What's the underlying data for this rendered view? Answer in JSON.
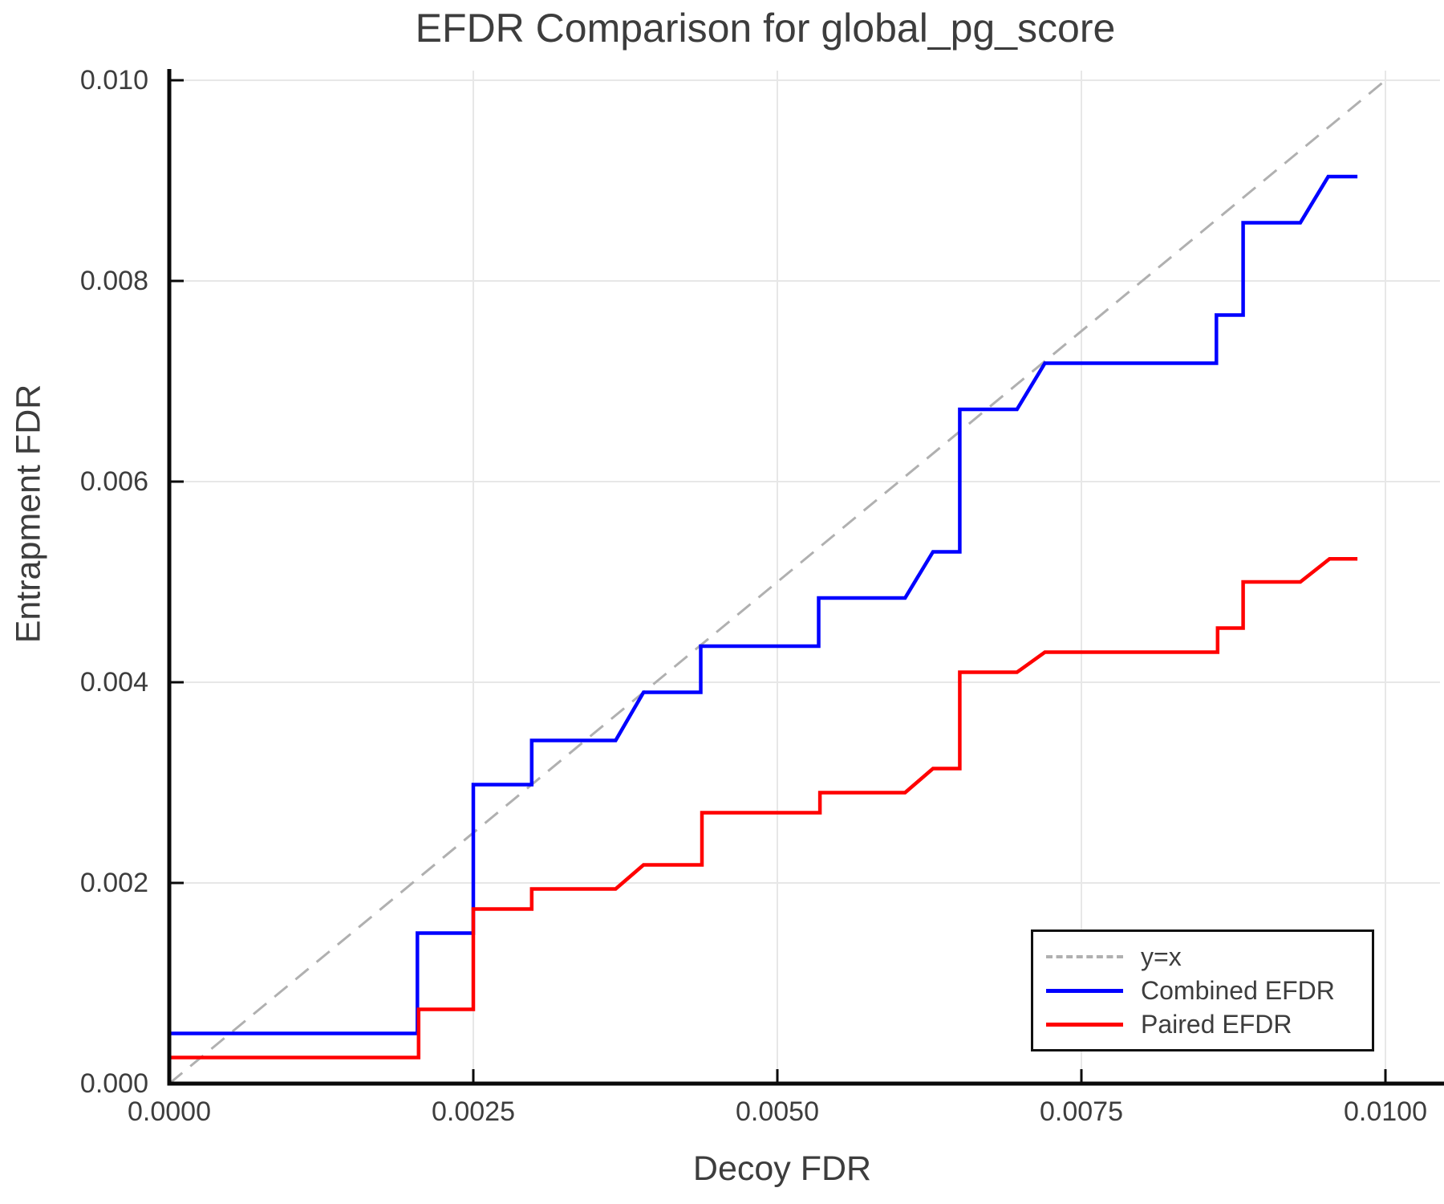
{
  "title": "EFDR Comparison for global_pg_score",
  "axes": {
    "x_label": "Decoy FDR",
    "y_label": "Entrapment FDR",
    "x_ticks": [
      "0.0000",
      "0.0025",
      "0.0050",
      "0.0075",
      "0.0100"
    ],
    "y_ticks": [
      "0.000",
      "0.002",
      "0.004",
      "0.006",
      "0.008",
      "0.010"
    ]
  },
  "legend": {
    "position": "lower right",
    "items": [
      {
        "label": "y=x",
        "color": "#b0b0b0",
        "style": "dashed"
      },
      {
        "label": "Combined EFDR",
        "color": "#0000ff",
        "style": "solid"
      },
      {
        "label": "Paired EFDR",
        "color": "#ff0000",
        "style": "solid"
      }
    ]
  },
  "colors": {
    "background": "#ffffff",
    "grid": "#e7e7e7",
    "spine": "#0a0a0a",
    "text": "#3d3d3d",
    "combined": "#0000ff",
    "paired": "#ff0000",
    "diagonal": "#b0b0b0"
  },
  "chart_data": {
    "type": "line",
    "title": "EFDR Comparison for global_pg_score",
    "xlabel": "Decoy FDR",
    "ylabel": "Entrapment FDR",
    "xlim": [
      0,
      0.01045
    ],
    "ylim": [
      0,
      0.0101
    ],
    "grid": true,
    "legend_position": "lower right",
    "x_tick_values": [
      0,
      0.0025,
      0.005,
      0.0075,
      0.01
    ],
    "y_tick_values": [
      0,
      0.002,
      0.004,
      0.006,
      0.008,
      0.01
    ],
    "series": [
      {
        "name": "y=x",
        "color": "#b0b0b0",
        "style": "dashed",
        "points": [
          [
            0,
            0
          ],
          [
            0.01,
            0.01
          ]
        ]
      },
      {
        "name": "Combined EFDR",
        "color": "#0000ff",
        "style": "solid",
        "points": [
          [
            0,
            0
          ],
          [
            0,
            0.0005
          ],
          [
            0.00204,
            0.0005
          ],
          [
            0.00204,
            0.0015
          ],
          [
            0.0025,
            0.0015
          ],
          [
            0.0025,
            0.00298
          ],
          [
            0.00298,
            0.00298
          ],
          [
            0.00298,
            0.00342
          ],
          [
            0.00367,
            0.00342
          ],
          [
            0.0039,
            0.0039
          ],
          [
            0.00437,
            0.0039
          ],
          [
            0.00437,
            0.00436
          ],
          [
            0.00534,
            0.00436
          ],
          [
            0.00534,
            0.00484
          ],
          [
            0.00605,
            0.00484
          ],
          [
            0.00628,
            0.0053
          ],
          [
            0.0065,
            0.0053
          ],
          [
            0.0065,
            0.00672
          ],
          [
            0.00697,
            0.00672
          ],
          [
            0.0072,
            0.00718
          ],
          [
            0.00861,
            0.00718
          ],
          [
            0.00861,
            0.00766
          ],
          [
            0.00883,
            0.00766
          ],
          [
            0.00883,
            0.00858
          ],
          [
            0.0093,
            0.00858
          ],
          [
            0.00953,
            0.00904
          ],
          [
            0.00977,
            0.00904
          ]
        ]
      },
      {
        "name": "Paired EFDR",
        "color": "#ff0000",
        "style": "solid",
        "points": [
          [
            0,
            0
          ],
          [
            0,
            0.00026
          ],
          [
            0.00205,
            0.00026
          ],
          [
            0.00205,
            0.00074
          ],
          [
            0.0025,
            0.00074
          ],
          [
            0.0025,
            0.00174
          ],
          [
            0.00298,
            0.00174
          ],
          [
            0.00298,
            0.00194
          ],
          [
            0.00367,
            0.00194
          ],
          [
            0.0039,
            0.00218
          ],
          [
            0.00438,
            0.00218
          ],
          [
            0.00438,
            0.0027
          ],
          [
            0.00535,
            0.0027
          ],
          [
            0.00535,
            0.0029
          ],
          [
            0.00605,
            0.0029
          ],
          [
            0.00628,
            0.00314
          ],
          [
            0.0065,
            0.00314
          ],
          [
            0.0065,
            0.0041
          ],
          [
            0.00697,
            0.0041
          ],
          [
            0.0072,
            0.0043
          ],
          [
            0.00862,
            0.0043
          ],
          [
            0.00862,
            0.00454
          ],
          [
            0.00883,
            0.00454
          ],
          [
            0.00883,
            0.005
          ],
          [
            0.0093,
            0.005
          ],
          [
            0.00954,
            0.00523
          ],
          [
            0.00977,
            0.00523
          ]
        ]
      }
    ]
  }
}
